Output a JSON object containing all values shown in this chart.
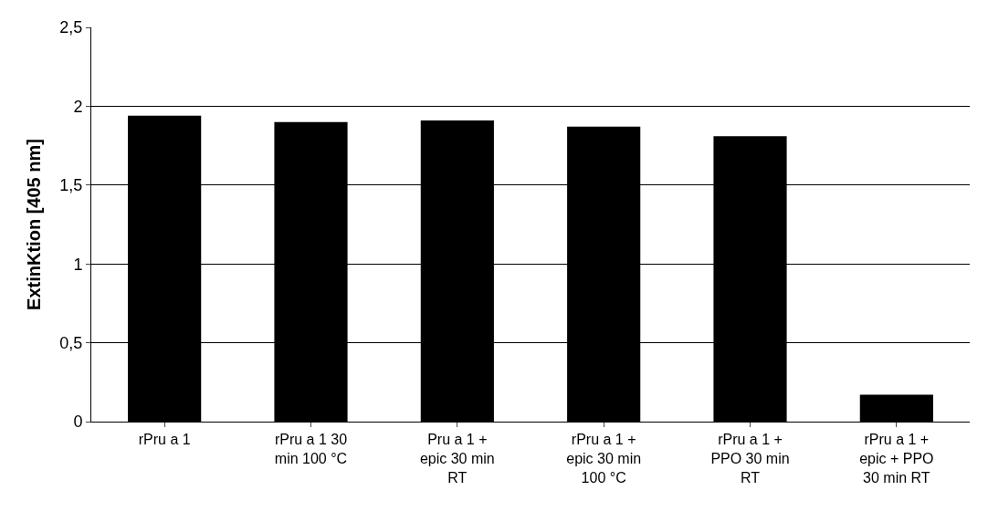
{
  "chart_data": {
    "type": "bar",
    "ylabel": "ExtinKtion [405 nm]",
    "categories": [
      "rPru a 1",
      "rPru a 1 30 min 100 °C",
      "Pru a 1 + epic 30 min RT",
      "rPru a 1 + epic 30 min 100 °C",
      "rPru a 1 + PPO 30 min RT",
      "rPru a 1 + epic + PPO 30 min RT"
    ],
    "values": [
      1.94,
      1.9,
      1.91,
      1.87,
      1.81,
      0.17
    ],
    "color": "#000000",
    "ylim": [
      0,
      2.5
    ],
    "yticks": [
      0,
      {
        "value": 0.5,
        "label": "0,5"
      },
      1,
      {
        "value": 1.5,
        "label": "1,5"
      },
      2,
      {
        "value": 2.5,
        "label": "2,5"
      }
    ],
    "grid": "y"
  }
}
